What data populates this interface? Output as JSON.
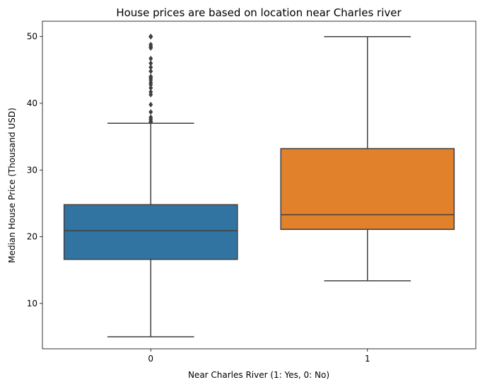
{
  "chart_data": {
    "type": "box",
    "title": "House prices are based on location near Charles river",
    "xlabel": "Near Charles River (1: Yes, 0: No)",
    "ylabel": "Median House Price (Thousand USD)",
    "categories": [
      "0",
      "1"
    ],
    "ylim": [
      3.2,
      52.3
    ],
    "yticks": [
      10,
      20,
      30,
      40,
      50
    ],
    "grid": false,
    "boxes": [
      {
        "category": "0",
        "color": "#3274a1",
        "whisker_low": 5.0,
        "q1": 16.6,
        "median": 20.9,
        "q3": 24.8,
        "whisker_high": 37.0,
        "outliers": [
          37.2,
          37.3,
          37.6,
          37.9,
          38.7,
          39.8,
          41.3,
          41.7,
          42.3,
          42.8,
          43.1,
          43.5,
          43.8,
          44.0,
          44.8,
          45.4,
          46.0,
          46.7,
          48.3,
          48.5,
          48.8,
          50.0,
          50.0,
          50.0,
          50.0,
          50.0
        ]
      },
      {
        "category": "1",
        "color": "#e1812c",
        "whisker_low": 13.4,
        "q1": 21.1,
        "median": 23.3,
        "q3": 33.2,
        "whisker_high": 50.0,
        "outliers": []
      }
    ]
  }
}
